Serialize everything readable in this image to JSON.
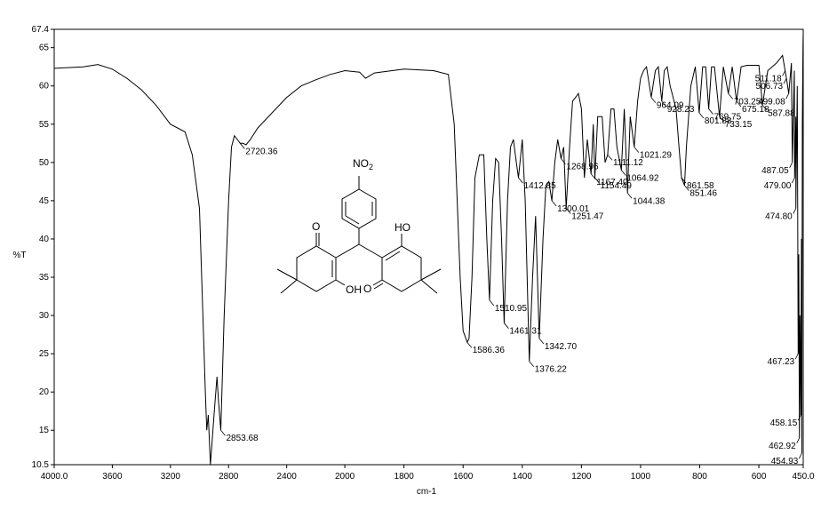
{
  "chart_data": {
    "type": "line",
    "xlabel": "cm-1",
    "ylabel": "%T",
    "xlim": [
      4000,
      450
    ],
    "xscale_break": 2000,
    "ylim": [
      10.5,
      67.4
    ],
    "color": "#000000",
    "xticks": [
      {
        "value": 4000,
        "label": "4000.0"
      },
      3600,
      3200,
      2800,
      2400,
      2000,
      1800,
      1600,
      1400,
      1200,
      1000,
      800,
      600,
      {
        "value": 450,
        "label": "450.0"
      }
    ],
    "yticks": [
      10.5,
      15,
      20,
      25,
      30,
      35,
      40,
      45,
      50,
      55,
      60,
      65,
      67.4
    ],
    "x": [
      4000,
      3800,
      3700,
      3600,
      3500,
      3400,
      3300,
      3200,
      3100,
      3050,
      3000,
      2960,
      2950,
      2940,
      2925,
      2900,
      2880,
      2870,
      2853.68,
      2830,
      2800,
      2780,
      2760,
      2740,
      2720.36,
      2700,
      2680,
      2650,
      2600,
      2500,
      2400,
      2300,
      2200,
      2100,
      2000,
      1950,
      1930,
      1900,
      1800,
      1700,
      1650,
      1630,
      1610,
      1600,
      1586.36,
      1580,
      1570,
      1560,
      1545,
      1530,
      1520,
      1510.95,
      1500,
      1490,
      1480,
      1470,
      1461.31,
      1450,
      1440,
      1430,
      1420,
      1412.85,
      1400,
      1390,
      1376.22,
      1365,
      1355,
      1342.7,
      1330,
      1320,
      1310,
      1300.01,
      1290,
      1280,
      1268.96,
      1260,
      1251.47,
      1240,
      1230,
      1210,
      1200,
      1190,
      1180,
      1167.4,
      1160,
      1154.49,
      1145,
      1130,
      1120,
      1111.12,
      1100,
      1090,
      1080,
      1064.92,
      1055,
      1044.38,
      1035,
      1021.29,
      1010,
      1000,
      990,
      980,
      964.09,
      950,
      940,
      928.23,
      920,
      910,
      900,
      880,
      870,
      861.58,
      851.46,
      845,
      830,
      815,
      801.88,
      790,
      780,
      769.75,
      760,
      750,
      733.15,
      720,
      703.25,
      690,
      675.18,
      660,
      640,
      600,
      587.88,
      570,
      540,
      520,
      511.18,
      506.73,
      499.08,
      490,
      487.05,
      480,
      479,
      475,
      474.8,
      470,
      467.23,
      465,
      462.92,
      461,
      458.15,
      456,
      454.93,
      453,
      451,
      450
    ],
    "values": [
      62.3,
      62.5,
      62.8,
      62.2,
      61,
      59.5,
      57.5,
      55,
      54,
      51,
      44,
      20,
      15,
      17,
      10.5,
      17,
      22,
      19,
      15,
      30,
      45,
      52,
      53.5,
      53,
      52.5,
      52.5,
      52.3,
      53,
      54.5,
      56.5,
      58.5,
      60,
      60.8,
      61.5,
      62,
      61.8,
      61,
      61.7,
      62.2,
      62,
      61.5,
      55,
      35,
      28,
      26.5,
      27,
      35,
      48,
      51,
      51,
      40,
      32,
      45,
      50.5,
      50,
      40,
      29,
      45,
      52,
      53,
      50,
      48,
      53,
      45,
      24,
      35,
      43,
      27,
      40,
      47,
      47.5,
      45,
      50,
      53,
      50.5,
      52,
      44,
      52,
      58,
      59,
      57,
      48,
      53,
      48.5,
      55,
      48,
      56,
      56,
      50,
      51,
      57,
      57,
      52,
      49,
      57,
      46,
      56,
      52,
      58,
      61,
      62,
      62.5,
      58.5,
      62,
      62.5,
      58,
      62,
      62.5,
      60,
      57,
      52,
      48,
      47,
      52,
      60,
      62.5,
      56.5,
      62.5,
      62.5,
      57,
      62.5,
      62.5,
      56,
      62.5,
      59,
      62.5,
      58,
      62.5,
      62.7,
      62.7,
      57.5,
      62,
      63,
      64,
      62,
      61,
      59,
      63,
      50,
      62,
      48,
      56,
      44,
      60,
      25,
      38,
      14,
      30,
      17,
      40,
      12,
      55,
      65,
      67
    ],
    "annotations": [
      {
        "label": "2853.68",
        "x": 2853.68,
        "y": 15
      },
      {
        "label": "2720.36",
        "x": 2720.36,
        "y": 52.5
      },
      {
        "label": "1586.36",
        "x": 1586.36,
        "y": 26.5
      },
      {
        "label": "1510.95",
        "x": 1510.95,
        "y": 32
      },
      {
        "label": "1461.31",
        "x": 1461.31,
        "y": 29
      },
      {
        "label": "1412.85",
        "x": 1412.85,
        "y": 48
      },
      {
        "label": "1376.22",
        "x": 1376.22,
        "y": 24
      },
      {
        "label": "1342.70",
        "x": 1342.7,
        "y": 27
      },
      {
        "label": "1300.01",
        "x": 1300.01,
        "y": 45
      },
      {
        "label": "1268.96",
        "x": 1268.96,
        "y": 50.5
      },
      {
        "label": "1251.47",
        "x": 1251.47,
        "y": 44
      },
      {
        "label": "1167.40",
        "x": 1167.4,
        "y": 48.5
      },
      {
        "label": "1154.49",
        "x": 1154.49,
        "y": 48
      },
      {
        "label": "1111.12",
        "x": 1111.12,
        "y": 51
      },
      {
        "label": "1064.92",
        "x": 1064.92,
        "y": 49
      },
      {
        "label": "1044.38",
        "x": 1044.38,
        "y": 46
      },
      {
        "label": "1021.29",
        "x": 1021.29,
        "y": 52
      },
      {
        "label": "964.09",
        "x": 964.09,
        "y": 58.5
      },
      {
        "label": "928.23",
        "x": 928.23,
        "y": 58
      },
      {
        "label": "861.58",
        "x": 861.58,
        "y": 48
      },
      {
        "label": "851.46",
        "x": 851.46,
        "y": 47
      },
      {
        "label": "801.88",
        "x": 801.88,
        "y": 56.5
      },
      {
        "label": "769.75",
        "x": 769.75,
        "y": 57
      },
      {
        "label": "733.15",
        "x": 733.15,
        "y": 56
      },
      {
        "label": "703.25",
        "x": 703.25,
        "y": 59
      },
      {
        "label": "675.18",
        "x": 675.18,
        "y": 58
      },
      {
        "label": "587.88",
        "x": 587.88,
        "y": 57.5
      },
      {
        "label": "511.18",
        "x": 511.18,
        "y": 62
      },
      {
        "label": "506.73",
        "x": 506.73,
        "y": 61
      },
      {
        "label": "499.08",
        "x": 499.08,
        "y": 59
      },
      {
        "label": "487.05",
        "x": 487.05,
        "y": 50
      },
      {
        "label": "479.00",
        "x": 479,
        "y": 48
      },
      {
        "label": "474.80",
        "x": 474.8,
        "y": 44
      },
      {
        "label": "467.23",
        "x": 467.23,
        "y": 25
      },
      {
        "label": "458.15",
        "x": 458.15,
        "y": 17
      },
      {
        "label": "462.92",
        "x": 462.92,
        "y": 14
      },
      {
        "label": "454.93",
        "x": 454.93,
        "y": 12
      }
    ]
  },
  "structure": {
    "nitro": "NO",
    "nitro_sub": "2",
    "left_ketone": "O",
    "left_hydroxyl": "OH",
    "right_hydroxyl": "HO",
    "right_ketone": "O"
  }
}
